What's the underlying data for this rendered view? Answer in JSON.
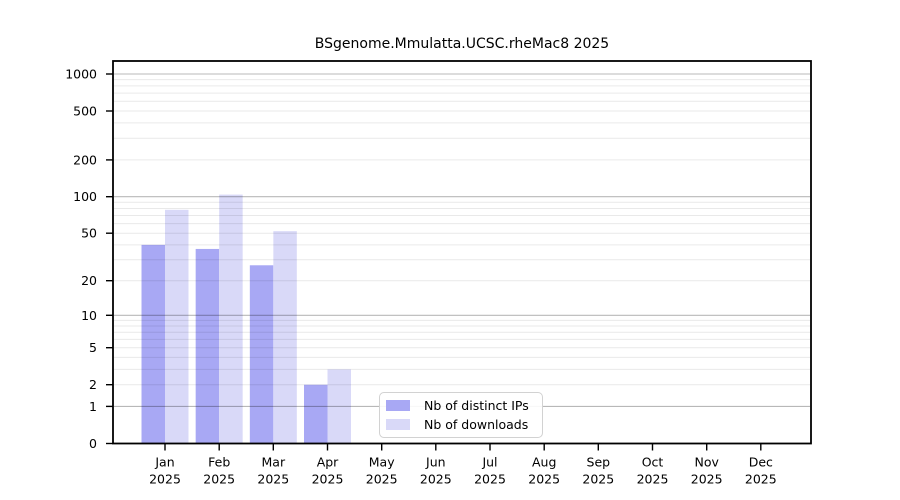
{
  "chart_data": {
    "type": "bar",
    "title": "BSgenome.Mmulatta.UCSC.rheMac8 2025",
    "categories": [
      "Jan",
      "Feb",
      "Mar",
      "Apr",
      "May",
      "Jun",
      "Jul",
      "Aug",
      "Sep",
      "Oct",
      "Nov",
      "Dec"
    ],
    "x_year_label": "2025",
    "series": [
      {
        "name": "Nb of distinct IPs",
        "color": "#a8a8f4",
        "values": [
          40,
          37,
          27,
          2,
          0,
          0,
          0,
          0,
          0,
          0,
          0,
          0
        ]
      },
      {
        "name": "Nb of downloads",
        "color": "#d9d9f8",
        "values": [
          78,
          104,
          52,
          3,
          0,
          0,
          0,
          0,
          0,
          0,
          0,
          0
        ]
      }
    ],
    "yscale": "log1p",
    "yticks": [
      0,
      1,
      2,
      5,
      10,
      20,
      50,
      100,
      200,
      500,
      1000
    ],
    "ylim": [
      0,
      1275
    ],
    "grid": {
      "major_values": [
        1,
        10,
        100,
        1000
      ],
      "minor_values": [
        2,
        3,
        4,
        5,
        6,
        7,
        8,
        9,
        20,
        30,
        40,
        50,
        60,
        70,
        80,
        90,
        200,
        300,
        400,
        500,
        600,
        700,
        800,
        900
      ]
    },
    "legend_position": "inside lower-left-of-center",
    "axis_color": "#000000"
  }
}
